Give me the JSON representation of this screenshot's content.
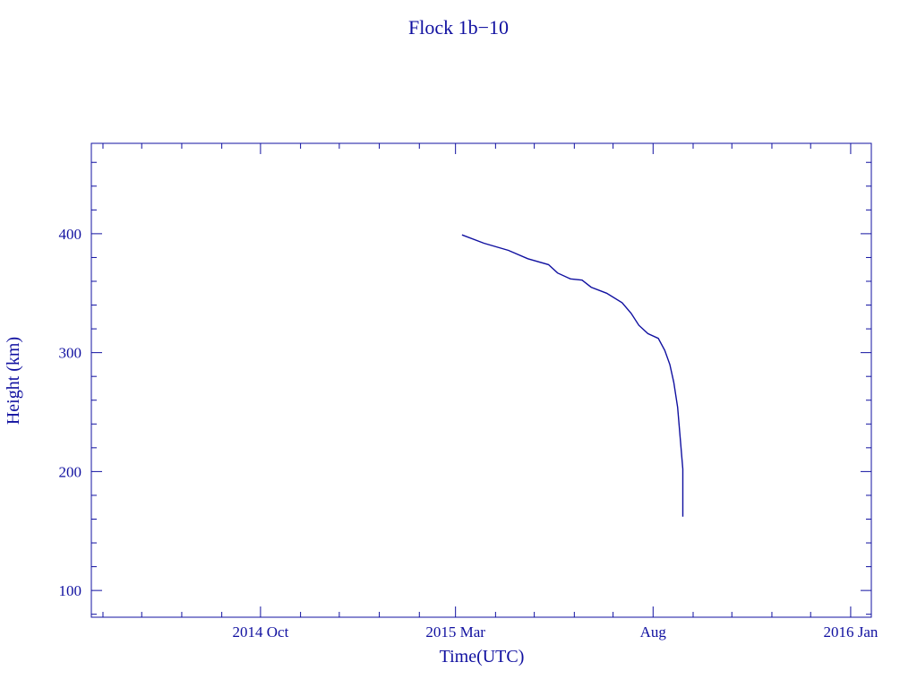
{
  "chart_data": {
    "type": "line",
    "title": "Flock 1b−10",
    "xlabel": "Time(UTC)",
    "ylabel": "Height (km)",
    "xlim": [
      "2014-05-23",
      "2016-01-17"
    ],
    "ylim": [
      77.5,
      476
    ],
    "grid": false,
    "color": "#1010a0",
    "x_ticks": [
      {
        "date": "2014-10-01",
        "label": "2014 Oct"
      },
      {
        "date": "2015-03-01",
        "label": "2015 Mar"
      },
      {
        "date": "2015-08-01",
        "label": "Aug"
      },
      {
        "date": "2016-01-01",
        "label": "2016 Jan"
      }
    ],
    "y_ticks": [
      100,
      200,
      300,
      400
    ],
    "y_tick_labels": [
      "100",
      "200",
      "300",
      "400"
    ],
    "series": [
      {
        "name": "Flock 1b-10",
        "x": [
          "2015-03-06",
          "2015-03-23",
          "2015-04-11",
          "2015-04-26",
          "2015-05-12",
          "2015-05-19",
          "2015-05-29",
          "2015-06-07",
          "2015-06-14",
          "2015-06-26",
          "2015-07-08",
          "2015-07-15",
          "2015-07-21",
          "2015-07-28",
          "2015-08-05",
          "2015-08-10",
          "2015-08-14",
          "2015-08-17",
          "2015-08-20",
          "2015-08-22",
          "2015-08-24",
          "2015-08-24"
        ],
        "y": [
          399,
          392,
          386,
          379,
          374,
          367,
          362,
          361,
          355,
          350,
          342,
          333,
          323,
          316,
          312,
          302,
          290,
          275,
          254,
          228,
          202,
          162
        ]
      }
    ]
  }
}
